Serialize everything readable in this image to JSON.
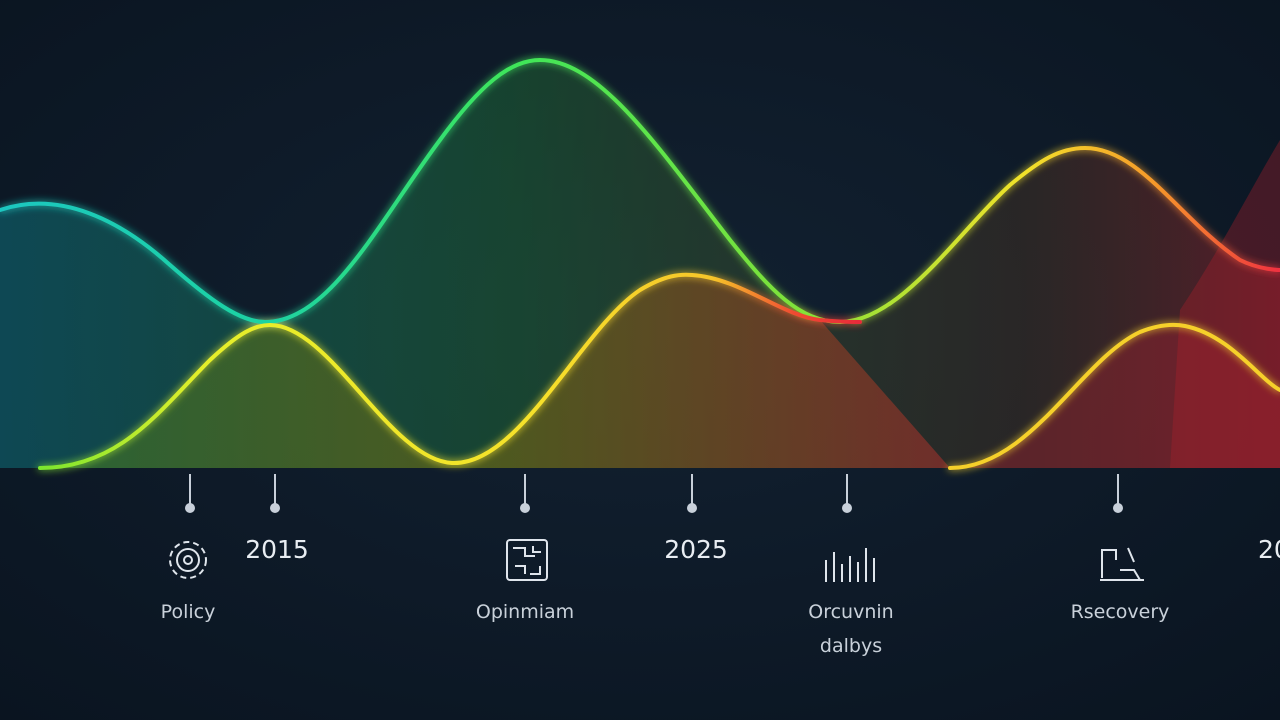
{
  "timeline": {
    "markers": [
      {
        "label": "Policy"
      },
      {
        "label": "2015"
      },
      {
        "label": "Opinmiam"
      },
      {
        "label": "2025"
      },
      {
        "label": "Orcuvnin",
        "sublabel": "dalbys"
      },
      {
        "label": "Rsecovery"
      },
      {
        "label": "20"
      }
    ]
  }
}
